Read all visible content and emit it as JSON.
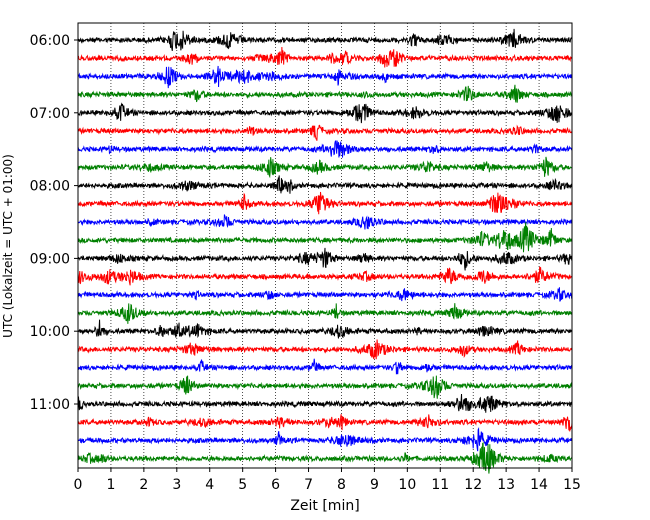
{
  "chart_data": {
    "type": "line",
    "subtype": "helicorder",
    "xlabel": "Zeit  [min]",
    "ylabel": "UTC (Lokalzeit = UTC + 01:00)",
    "xlim": [
      0,
      15
    ],
    "x_ticks": [
      "0",
      "1",
      "2",
      "3",
      "4",
      "5",
      "6",
      "7",
      "8",
      "9",
      "10",
      "11",
      "12",
      "13",
      "14",
      "15"
    ],
    "y_ticks": [
      "06:00",
      "07:00",
      "08:00",
      "09:00",
      "10:00",
      "11:00"
    ],
    "grid": {
      "x": "dotted",
      "y": false
    },
    "row_minutes": 15,
    "row_colors": [
      "#000000",
      "#ff0000",
      "#0000ff",
      "#008000"
    ],
    "rows": [
      {
        "start": "06:00",
        "color": "#000000"
      },
      {
        "start": "06:15",
        "color": "#ff0000"
      },
      {
        "start": "06:30",
        "color": "#0000ff"
      },
      {
        "start": "06:45",
        "color": "#008000"
      },
      {
        "start": "07:00",
        "color": "#000000"
      },
      {
        "start": "07:15",
        "color": "#ff0000"
      },
      {
        "start": "07:30",
        "color": "#0000ff"
      },
      {
        "start": "07:45",
        "color": "#008000"
      },
      {
        "start": "08:00",
        "color": "#000000"
      },
      {
        "start": "08:15",
        "color": "#ff0000"
      },
      {
        "start": "08:30",
        "color": "#0000ff"
      },
      {
        "start": "08:45",
        "color": "#008000"
      },
      {
        "start": "09:00",
        "color": "#000000"
      },
      {
        "start": "09:15",
        "color": "#ff0000"
      },
      {
        "start": "09:30",
        "color": "#0000ff"
      },
      {
        "start": "09:45",
        "color": "#008000"
      },
      {
        "start": "10:00",
        "color": "#000000"
      },
      {
        "start": "10:15",
        "color": "#ff0000"
      },
      {
        "start": "10:30",
        "color": "#0000ff"
      },
      {
        "start": "10:45",
        "color": "#008000"
      },
      {
        "start": "11:00",
        "color": "#000000"
      },
      {
        "start": "11:15",
        "color": "#ff0000"
      },
      {
        "start": "11:30",
        "color": "#0000ff"
      },
      {
        "start": "11:45",
        "color": "#008000"
      }
    ]
  }
}
